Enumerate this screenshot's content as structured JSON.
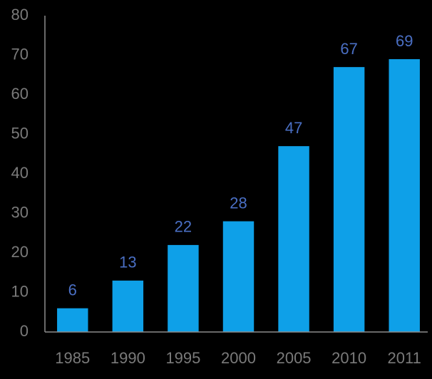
{
  "chart_data": {
    "type": "bar",
    "categories": [
      "1985",
      "1990",
      "1995",
      "2000",
      "2005",
      "2010",
      "2011"
    ],
    "values": [
      6,
      13,
      22,
      28,
      47,
      67,
      69
    ],
    "color": "#0ea0e8",
    "ylim": [
      0,
      80
    ],
    "yticks": [
      0,
      10,
      20,
      30,
      40,
      50,
      60,
      70,
      80
    ],
    "grid": false
  }
}
